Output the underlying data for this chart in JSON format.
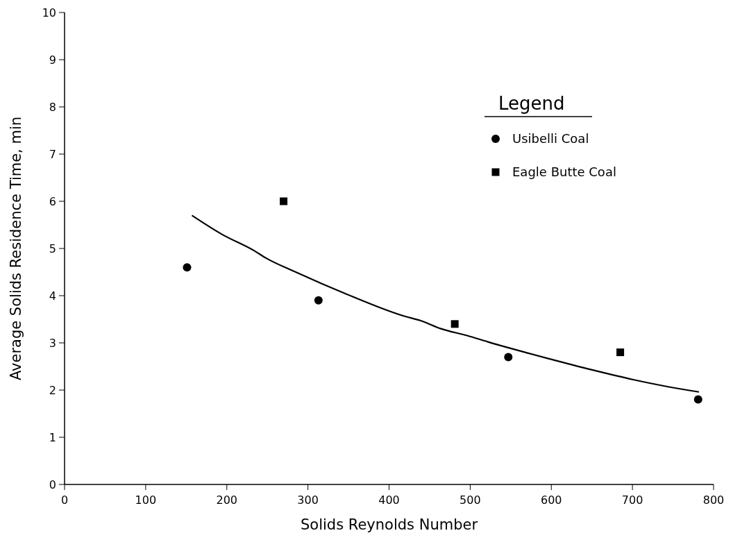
{
  "chart_data": {
    "type": "scatter",
    "xlabel": "Solids Reynolds Number",
    "ylabel": "Average Solids Residence Time, min",
    "legend_title": "Legend",
    "legend": "top right",
    "xlim": [
      0,
      800
    ],
    "ylim": [
      0,
      10
    ],
    "xticks": [
      0,
      100,
      200,
      300,
      400,
      500,
      600,
      700,
      800
    ],
    "yticks": [
      0,
      1,
      2,
      3,
      4,
      5,
      6,
      7,
      8,
      9,
      10
    ],
    "grid": false,
    "series": [
      {
        "name": "Usibelli Coal",
        "marker": "circle",
        "color": "#000000",
        "x": [
          151,
          313,
          547,
          781
        ],
        "values": [
          4.6,
          3.9,
          2.7,
          1.8
        ]
      },
      {
        "name": "Eagle Butte Coal",
        "marker": "square",
        "color": "#000000",
        "x": [
          270,
          481,
          685
        ],
        "values": [
          6.0,
          3.4,
          2.8
        ]
      },
      {
        "type": "line",
        "marker": "none",
        "line_style": "solid",
        "color": "#000000",
        "x": [
          157,
          194,
          234,
          248,
          285,
          348,
          418,
          439,
          464,
          497,
          522,
          598,
          652,
          701,
          744,
          782
        ],
        "values": [
          5.7,
          5.3,
          4.95,
          4.8,
          4.5,
          4.03,
          3.57,
          3.47,
          3.3,
          3.15,
          3.02,
          2.66,
          2.42,
          2.22,
          2.07,
          1.96
        ]
      }
    ]
  }
}
